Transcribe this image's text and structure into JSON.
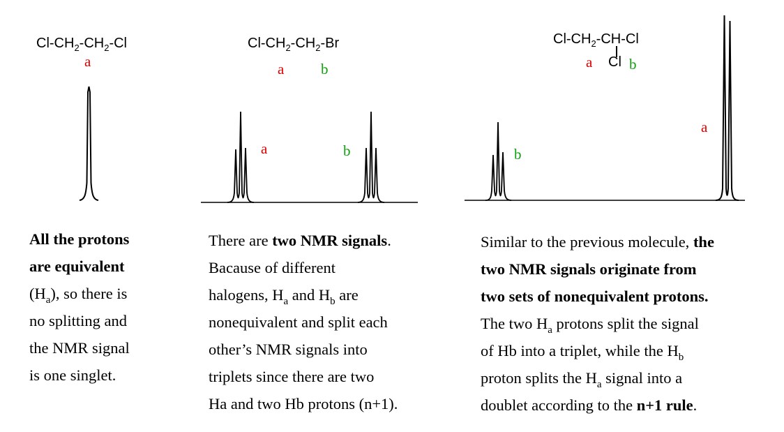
{
  "panel1": {
    "formula": [
      "Cl-CH",
      "2",
      "-CH",
      "2",
      "-Cl"
    ],
    "label_a": "a",
    "text": [
      {
        "b": "All the protons"
      },
      {
        "b": "are equivalent"
      },
      {
        "p1": "(H",
        "sub": "a",
        "p2": "), so there is"
      },
      {
        "t": "no splitting and"
      },
      {
        "t": "the NMR signal"
      },
      {
        "t": "is one singlet."
      }
    ]
  },
  "panel2": {
    "formula": [
      "Cl-CH",
      "2",
      "-CH",
      "2",
      "-Br"
    ],
    "label_a": "a",
    "label_b": "b",
    "peak_label_a": "a",
    "peak_label_b": "b",
    "text": [
      {
        "t": "There are ",
        "b": "two NMR signals",
        "t2": "."
      },
      {
        "t": "Bacause of different"
      },
      {
        "p1": "halogens, H",
        "sub1": "a",
        "p2": " and H",
        "sub2": "b",
        "p3": " are"
      },
      {
        "t": "nonequivalent and split each"
      },
      {
        "t": "other’s NMR signals into"
      },
      {
        "t": "triplets since there are two"
      },
      {
        "t": "Ha and two Hb protons (n+1)."
      }
    ]
  },
  "panel3": {
    "formula_top": [
      "Cl-CH",
      "2",
      "-CH-Cl"
    ],
    "formula_bottom": "Cl",
    "label_a": "a",
    "label_b": "b",
    "peak_label_b": "b",
    "peak_label_a": "a",
    "text": {
      "l1_t": "Similar to the previous molecule, ",
      "l1_b": "the",
      "l2_b": "two NMR signals originate from",
      "l3_b": "two sets of nonequivalent protons.",
      "l4_p1": "The two H",
      "l4_sub": "a",
      "l4_p2": " protons split the signal",
      "l5_p1": "of Hb into a triplet, while the H",
      "l5_sub": "b",
      "l6_p1": "proton splits the H",
      "l6_sub": "a",
      "l6_p2": " signal into a",
      "l7_t": "doublet according to the ",
      "l7_b": "n+1 rule",
      "l7_t2": "."
    }
  },
  "colors": {
    "a": "#e00000",
    "b": "#10a010"
  }
}
